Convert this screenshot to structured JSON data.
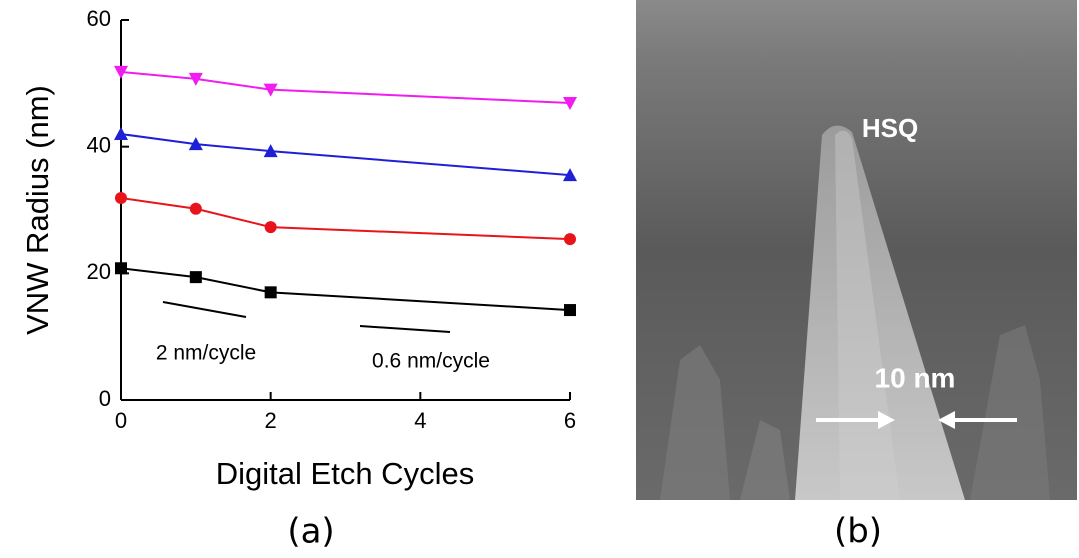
{
  "chart_data": {
    "type": "line",
    "xlabel": "Digital Etch Cycles",
    "ylabel": "VNW Radius (nm)",
    "x": [
      0,
      1,
      2,
      6
    ],
    "series": [
      {
        "color": "#000000",
        "marker": "square",
        "values": [
          20.8,
          19.4,
          17.0,
          14.2
        ]
      },
      {
        "color": "#e8141b",
        "marker": "circle",
        "values": [
          31.9,
          30.2,
          27.3,
          25.4
        ]
      },
      {
        "color": "#1f1fd6",
        "marker": "triangle-up",
        "values": [
          42.0,
          40.4,
          39.3,
          35.5
        ]
      },
      {
        "color": "#f01cf0",
        "marker": "triangle-down",
        "values": [
          51.8,
          50.7,
          49.0,
          46.9
        ]
      }
    ],
    "xlim": [
      0,
      6
    ],
    "xticks": [
      0,
      2,
      4,
      6
    ],
    "ylim": [
      0,
      60
    ],
    "yticks": [
      0,
      20,
      40,
      60
    ],
    "annotations": [
      "2 nm/cycle",
      "0.6 nm/cycle"
    ]
  },
  "image": {
    "annotations": [
      "HSQ",
      "10 nm"
    ]
  },
  "panel_labels": [
    "(a)",
    "(b)"
  ]
}
